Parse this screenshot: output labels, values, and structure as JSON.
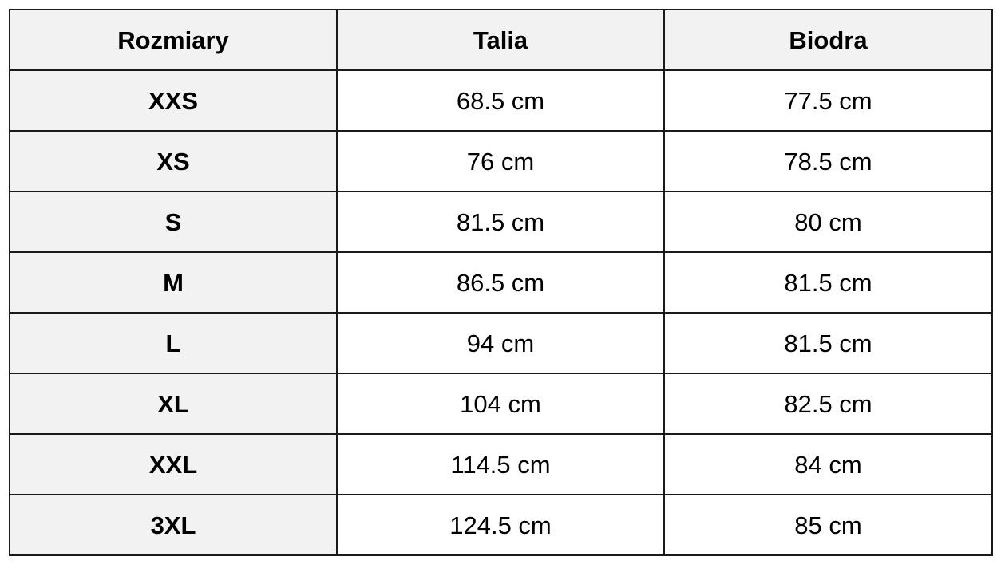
{
  "table": {
    "headers": [
      "Rozmiary",
      "Talia",
      "Biodra"
    ],
    "rows": [
      [
        "XXS",
        "68.5 cm",
        "77.5 cm"
      ],
      [
        "XS",
        "76 cm",
        "78.5 cm"
      ],
      [
        "S",
        "81.5 cm",
        "80 cm"
      ],
      [
        "M",
        "86.5 cm",
        "81.5 cm"
      ],
      [
        "L",
        "94 cm",
        "81.5 cm"
      ],
      [
        "XL",
        "104 cm",
        "82.5 cm"
      ],
      [
        "XXL",
        "114.5 cm",
        "84 cm"
      ],
      [
        "3XL",
        "124.5 cm",
        "85 cm"
      ]
    ]
  },
  "colors": {
    "header_background": "#f2f2f2",
    "size_column_background": "#f2f2f2",
    "border": "#1a1a1a",
    "text": "#000000"
  }
}
